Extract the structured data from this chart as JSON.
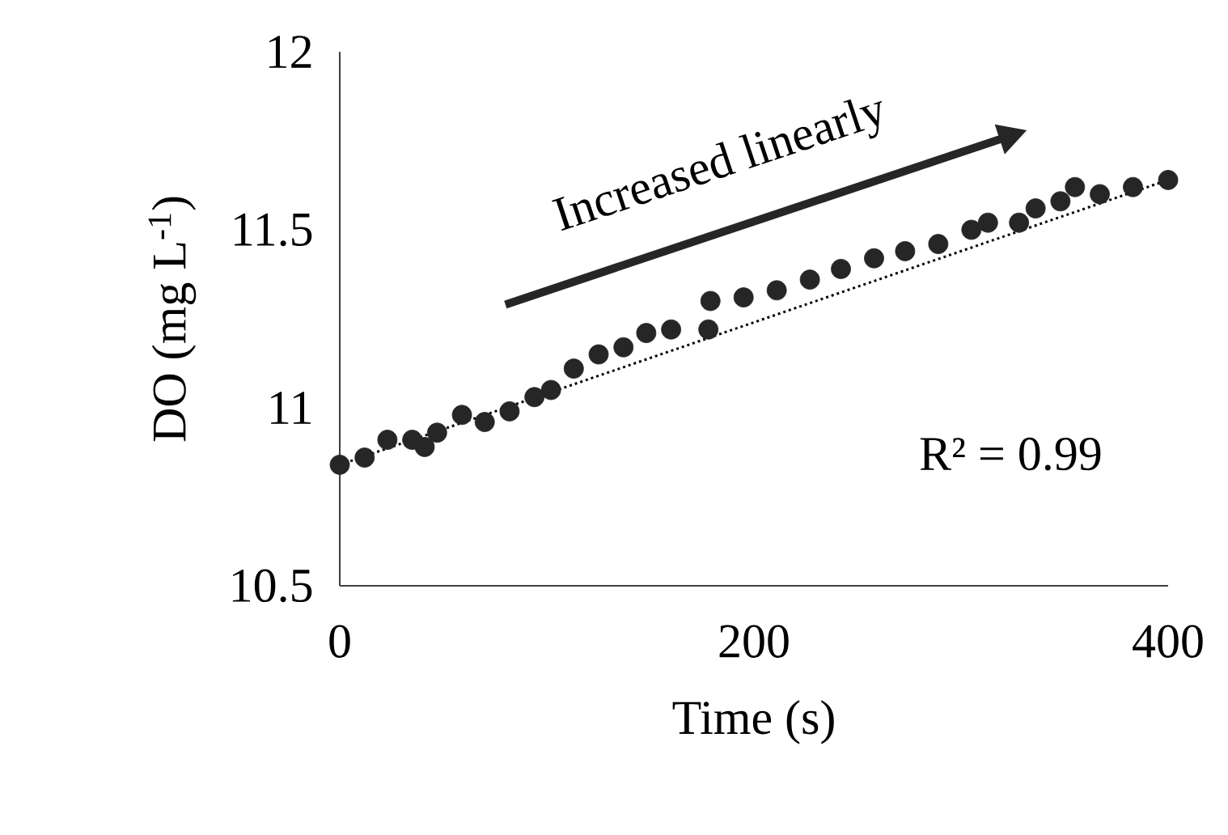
{
  "chart_data": {
    "type": "scatter",
    "xlabel": "Time (s)",
    "ylabel": "DO (mg L$^{-1}$)",
    "xlim": [
      0,
      400
    ],
    "ylim": [
      10.5,
      12
    ],
    "xticks": [
      0,
      200,
      400
    ],
    "yticks": [
      10.5,
      11,
      11.5,
      12
    ],
    "annotations": [
      "Increased linearly",
      "R² = 0.99"
    ],
    "series": [
      {
        "color": "#262626",
        "marker": "circle",
        "x": [
          0,
          12,
          23,
          35,
          41,
          47,
          59,
          70,
          82,
          94,
          102,
          113,
          125,
          137,
          148,
          160,
          178,
          179,
          195,
          211,
          227,
          242,
          258,
          273,
          289,
          305,
          313,
          328,
          336,
          348,
          355,
          367,
          383,
          400
        ],
        "values": [
          10.84,
          10.86,
          10.91,
          10.91,
          10.89,
          10.93,
          10.98,
          10.96,
          10.99,
          11.03,
          11.05,
          11.11,
          11.15,
          11.17,
          11.21,
          11.22,
          11.22,
          11.3,
          11.31,
          11.33,
          11.36,
          11.39,
          11.42,
          11.44,
          11.46,
          11.5,
          11.52,
          11.52,
          11.56,
          11.58,
          11.62,
          11.6,
          11.62,
          11.64
        ]
      },
      {
        "type": "line",
        "color": "#000000",
        "marker": "none",
        "line_style": "dotted",
        "x": [
          0,
          400
        ],
        "values": [
          10.84,
          11.64
        ]
      }
    ]
  }
}
